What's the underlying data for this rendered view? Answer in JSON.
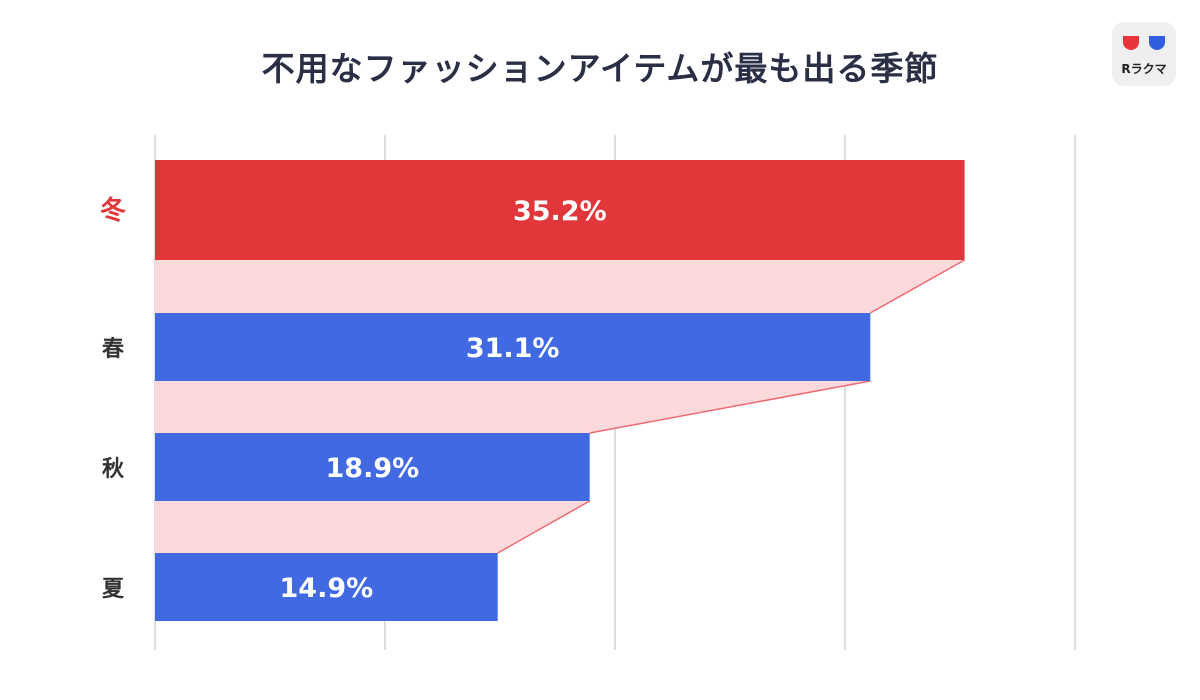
{
  "chart_data": {
    "type": "bar",
    "title": "不用なファッションアイテムが最も出る季節",
    "categories": [
      "冬",
      "春",
      "秋",
      "夏"
    ],
    "values": [
      35.2,
      31.1,
      18.9,
      14.9
    ],
    "value_labels": [
      "35.2%",
      "31.1%",
      "18.9%",
      "14.9%"
    ],
    "xlim": [
      0,
      40
    ],
    "orientation": "horizontal",
    "grid": true,
    "highlight_index": 0,
    "colors": {
      "highlight": "#e2373a",
      "bar": "#4169e1",
      "connector": "#fdd9db",
      "connector_line": "#f06a72",
      "highlight_label": "#e2373a",
      "label": "#333333",
      "grid": "#dedede"
    }
  },
  "logo": {
    "text": "Rラクマ",
    "icon": "rakuma-logo-icon"
  }
}
